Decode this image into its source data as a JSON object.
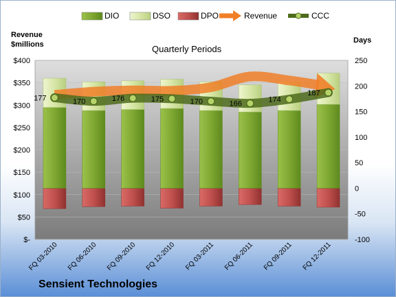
{
  "chart_data": {
    "type": "bar",
    "company": "Sensient Technologies",
    "subtitle": "Quarterly Periods",
    "ylabel_left": [
      "Revenue",
      "$millions"
    ],
    "ylabel_right": "Days",
    "categories": [
      "FQ 03-2010",
      "FQ 06-2010",
      "FQ 09-2010",
      "FQ 12-2010",
      "FQ 03-2011",
      "FQ 06-2011",
      "FQ 09-2011",
      "FQ 12-2011"
    ],
    "ylim_left": [
      0,
      400
    ],
    "ylim_right": [
      -100,
      250
    ],
    "yticks_left": [
      "$-",
      "$50",
      "$100",
      "$150",
      "$200",
      "$250",
      "$300",
      "$350",
      "$400"
    ],
    "yticks_right": [
      "-100",
      "-50",
      "0",
      "50",
      "100",
      "150",
      "200",
      "250"
    ],
    "legend": [
      "DIO",
      "DSO",
      "DPO",
      "Revenue",
      "CCC"
    ],
    "legend_position": "top",
    "series": [
      {
        "name": "DIO",
        "axis": "right",
        "color": "#7fa832",
        "values": [
          158,
          152,
          154,
          156,
          152,
          149,
          152,
          164
        ]
      },
      {
        "name": "DSO",
        "axis": "right",
        "color": "#d7e6a6",
        "values": [
          57,
          56,
          56,
          57,
          56,
          53,
          56,
          61
        ]
      },
      {
        "name": "DPO",
        "axis": "right",
        "color": "#c0504d",
        "values": [
          -40,
          -36,
          -35,
          -39,
          -35,
          -32,
          -35,
          -37
        ]
      },
      {
        "name": "Revenue",
        "axis": "left",
        "color": "#f07f28",
        "values": [
          323,
          330,
          333,
          332,
          340,
          364,
          355,
          342
        ]
      },
      {
        "name": "CCC",
        "axis": "right",
        "color": "#4d7a1f",
        "values": [
          177,
          170,
          176,
          175,
          170,
          166,
          174,
          187
        ]
      }
    ],
    "data_labels": [
      "177",
      "170",
      "176",
      "175",
      "170",
      "166",
      "174",
      "187"
    ]
  }
}
